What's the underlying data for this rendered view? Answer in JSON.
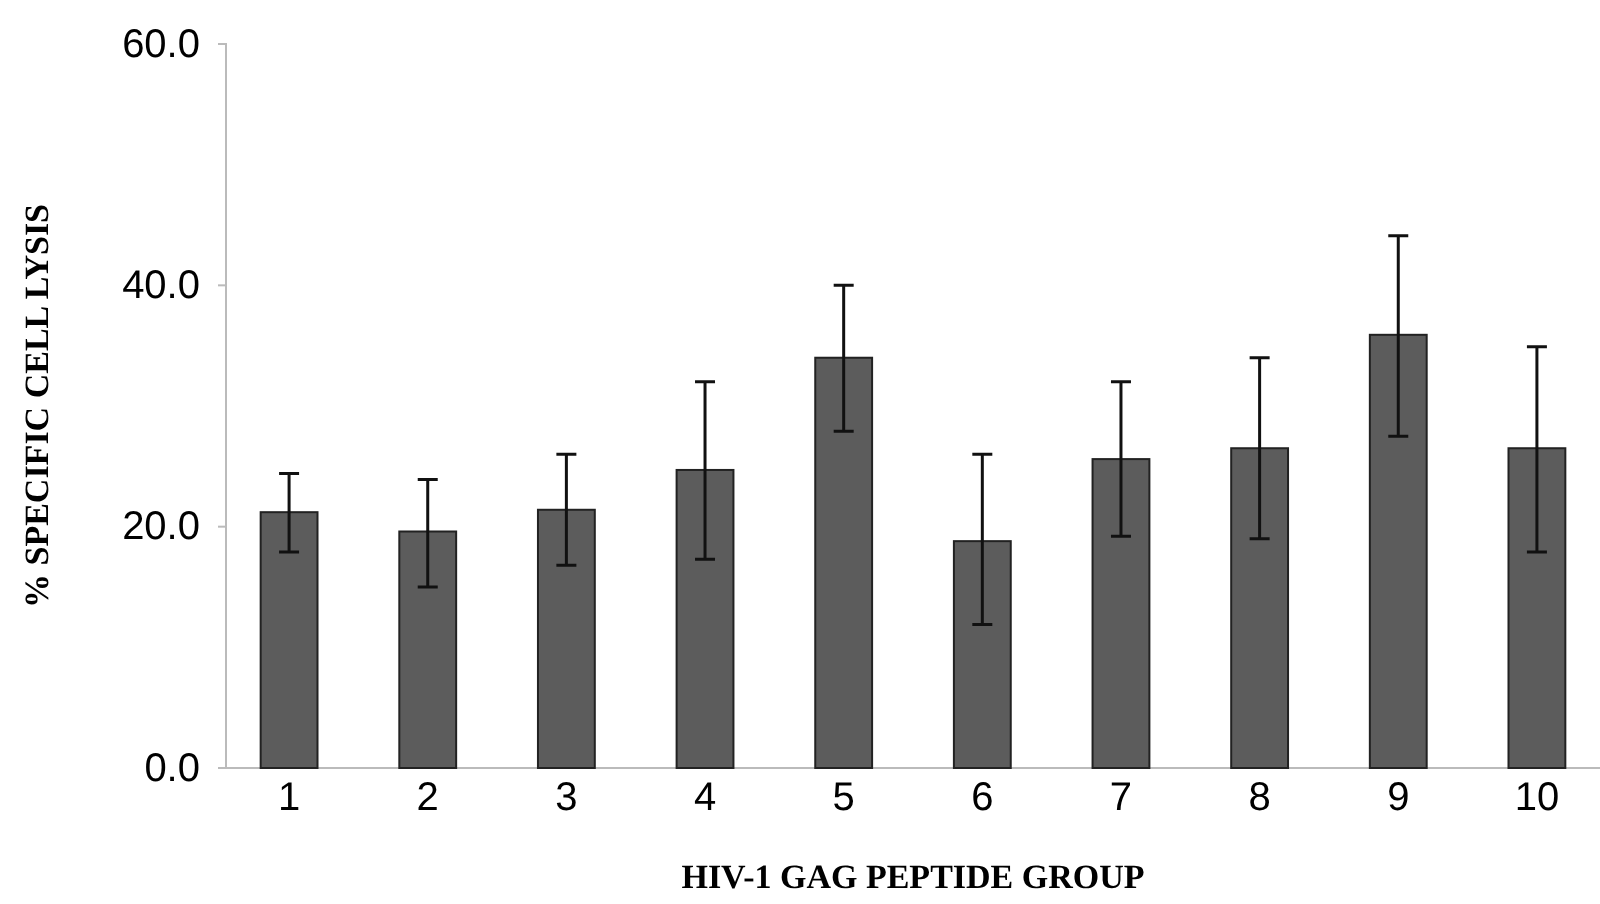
{
  "chart_data": {
    "type": "bar",
    "xlabel": "HIV-1 GAG PEPTIDE GROUP",
    "ylabel": "% SPECIFIC CELL LYSIS",
    "categories": [
      "1",
      "2",
      "3",
      "4",
      "5",
      "6",
      "7",
      "8",
      "9",
      "10"
    ],
    "values": [
      21.2,
      19.6,
      21.4,
      24.7,
      34.0,
      18.8,
      25.6,
      26.5,
      35.9,
      26.5
    ],
    "errors": [
      [
        17.9,
        24.4
      ],
      [
        15.0,
        23.9
      ],
      [
        16.8,
        26.0
      ],
      [
        17.3,
        32.0
      ],
      [
        27.9,
        40.0
      ],
      [
        11.9,
        26.0
      ],
      [
        19.2,
        32.0
      ],
      [
        19.0,
        34.0
      ],
      [
        27.5,
        44.1
      ],
      [
        17.9,
        34.9
      ]
    ],
    "color": "#5c5c5c",
    "ylim": [
      0,
      60
    ],
    "yticks": [
      {
        "value": 0,
        "label": "0.0"
      },
      {
        "value": 20,
        "label": "20.0"
      },
      {
        "value": 40,
        "label": "40.0"
      },
      {
        "value": 60,
        "label": "60.0"
      }
    ],
    "grid": false
  }
}
